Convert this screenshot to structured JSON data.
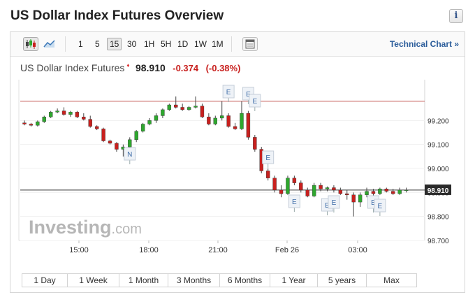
{
  "title": "US Dollar Index Futures Overview",
  "info_glyph": "i",
  "toolbar": {
    "intervals": [
      "1",
      "5",
      "15",
      "30",
      "1H",
      "5H",
      "1D",
      "1W",
      "1M"
    ],
    "active_interval": "15",
    "technical_link": "Technical Chart »"
  },
  "quote": {
    "name": "US Dollar Index Futures",
    "price": "98.910",
    "change": "-0.374",
    "change_pct": "(-0.38%)"
  },
  "watermark": {
    "brand": "Investing",
    "suffix": ".com"
  },
  "colors": {
    "up": "#2ea72e",
    "down": "#c8201e",
    "hline_red": "#c8625e",
    "link": "#2a5c9a"
  },
  "chart_data": {
    "type": "candlestick",
    "y_ticks": [
      "99.200",
      "99.100",
      "99.000",
      "98.900",
      "98.800",
      "98.700"
    ],
    "x_ticks": [
      "15:00",
      "18:00",
      "21:00",
      "Feb 26",
      "03:00"
    ],
    "ylim": [
      98.7,
      99.37
    ],
    "last_price": "98.910",
    "reference_line": 99.28,
    "event_markers": [
      "E",
      "E",
      "E",
      "N",
      "E",
      "E",
      "E",
      "E",
      "E",
      "E"
    ],
    "candles": [
      [
        99.19,
        99.2,
        99.18,
        99.185
      ],
      [
        99.185,
        99.19,
        99.175,
        99.18
      ],
      [
        99.18,
        99.2,
        99.175,
        99.195
      ],
      [
        99.195,
        99.22,
        99.19,
        99.215
      ],
      [
        99.215,
        99.24,
        99.21,
        99.235
      ],
      [
        99.235,
        99.25,
        99.23,
        99.24
      ],
      [
        99.24,
        99.255,
        99.22,
        99.225
      ],
      [
        99.225,
        99.24,
        99.215,
        99.235
      ],
      [
        99.235,
        99.24,
        99.21,
        99.215
      ],
      [
        99.215,
        99.23,
        99.2,
        99.205
      ],
      [
        99.205,
        99.22,
        99.17,
        99.175
      ],
      [
        99.175,
        99.18,
        99.16,
        99.165
      ],
      [
        99.165,
        99.17,
        99.11,
        99.115
      ],
      [
        99.115,
        99.12,
        99.1,
        99.105
      ],
      [
        99.105,
        99.11,
        99.07,
        99.08
      ],
      [
        99.08,
        99.1,
        99.05,
        99.09
      ],
      [
        99.09,
        99.13,
        99.08,
        99.12
      ],
      [
        99.12,
        99.16,
        99.11,
        99.155
      ],
      [
        99.155,
        99.19,
        99.15,
        99.185
      ],
      [
        99.185,
        99.21,
        99.18,
        99.2
      ],
      [
        99.2,
        99.23,
        99.19,
        99.22
      ],
      [
        99.22,
        99.25,
        99.21,
        99.245
      ],
      [
        99.245,
        99.27,
        99.24,
        99.265
      ],
      [
        99.265,
        99.3,
        99.25,
        99.255
      ],
      [
        99.255,
        99.27,
        99.24,
        99.245
      ],
      [
        99.245,
        99.26,
        99.24,
        99.255
      ],
      [
        99.255,
        99.3,
        99.25,
        99.26
      ],
      [
        99.26,
        99.27,
        99.21,
        99.215
      ],
      [
        99.215,
        99.23,
        99.18,
        99.185
      ],
      [
        99.185,
        99.22,
        99.18,
        99.21
      ],
      [
        99.21,
        99.28,
        99.2,
        99.22
      ],
      [
        99.22,
        99.23,
        99.17,
        99.175
      ],
      [
        99.175,
        99.19,
        99.16,
        99.165
      ],
      [
        99.165,
        99.28,
        99.16,
        99.23
      ],
      [
        99.23,
        99.24,
        99.12,
        99.13
      ],
      [
        99.13,
        99.14,
        99.07,
        99.08
      ],
      [
        99.08,
        99.09,
        98.98,
        98.99
      ],
      [
        98.99,
        99.0,
        98.95,
        98.96
      ],
      [
        98.96,
        98.97,
        98.9,
        98.91
      ],
      [
        98.91,
        98.93,
        98.88,
        98.895
      ],
      [
        98.895,
        98.97,
        98.89,
        98.96
      ],
      [
        98.96,
        98.97,
        98.93,
        98.94
      ],
      [
        98.94,
        98.95,
        98.9,
        98.91
      ],
      [
        98.91,
        98.92,
        98.88,
        98.885
      ],
      [
        98.885,
        98.94,
        98.88,
        98.93
      ],
      [
        98.93,
        98.94,
        98.905,
        98.915
      ],
      [
        98.915,
        98.925,
        98.905,
        98.92
      ],
      [
        98.92,
        98.93,
        98.9,
        98.91
      ],
      [
        98.91,
        98.92,
        98.89,
        98.895
      ],
      [
        98.895,
        98.91,
        98.87,
        98.89
      ],
      [
        98.89,
        98.9,
        98.8,
        98.86
      ],
      [
        98.86,
        98.9,
        98.84,
        98.89
      ],
      [
        98.89,
        98.92,
        98.88,
        98.905
      ],
      [
        98.905,
        98.915,
        98.88,
        98.895
      ],
      [
        98.895,
        98.92,
        98.89,
        98.915
      ],
      [
        98.915,
        98.92,
        98.9,
        98.905
      ],
      [
        98.905,
        98.915,
        98.89,
        98.895
      ],
      [
        98.895,
        98.92,
        98.89,
        98.91
      ],
      [
        98.91,
        98.92,
        98.9,
        98.91
      ]
    ]
  },
  "ranges": [
    "1 Day",
    "1 Week",
    "1 Month",
    "3 Months",
    "6 Months",
    "1 Year",
    "5 years",
    "Max"
  ]
}
